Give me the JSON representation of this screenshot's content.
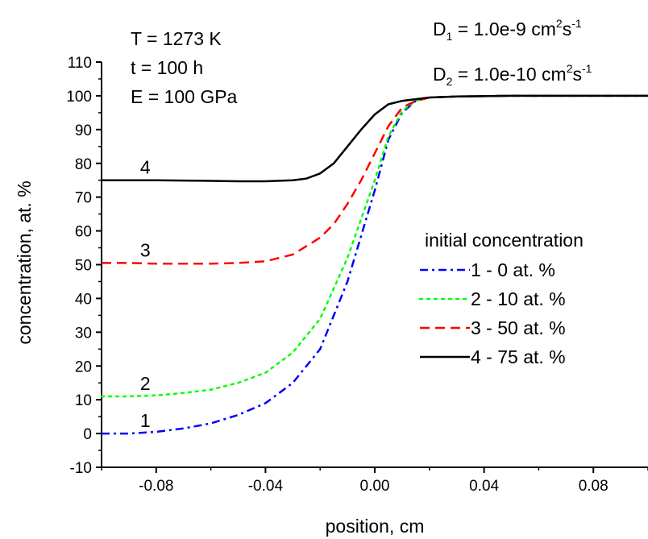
{
  "chart_data": {
    "type": "line",
    "title": "",
    "xlabel": "position, cm",
    "ylabel": "concentration, at. %",
    "xlim": [
      -0.1,
      0.1
    ],
    "ylim": [
      -10,
      110
    ],
    "xticks": [
      -0.08,
      -0.04,
      0.0,
      0.04,
      0.08
    ],
    "xtick_labels": [
      "-0.08",
      "-0.04",
      "0.00",
      "0.04",
      "0.08"
    ],
    "yticks": [
      -10,
      0,
      10,
      20,
      30,
      40,
      50,
      60,
      70,
      80,
      90,
      100,
      110
    ],
    "ytick_labels": [
      "-10",
      "0",
      "10",
      "20",
      "30",
      "40",
      "50",
      "60",
      "70",
      "80",
      "90",
      "100",
      "110"
    ],
    "grid": false,
    "legend": {
      "title": "initial concentration",
      "placement": "center-right",
      "entries": [
        "1 -   0 at. %",
        "2 - 10 at. %",
        "3 - 50 at. %",
        "4 - 75 at. %"
      ]
    },
    "annotations": {
      "params_left": [
        "T = 1273 K",
        "t  = 100 h",
        "E = 100 GPa"
      ],
      "d1": {
        "main": "D",
        "sub": "1",
        "value": " = 1.0e-9  cm",
        "sup1": "2",
        "mid": "s",
        "sup2": "-1"
      },
      "d2": {
        "main": "D",
        "sub": "2",
        "value": " = 1.0e-10 cm",
        "sup1": "2",
        "mid": "s",
        "sup2": "-1"
      }
    },
    "series": [
      {
        "label": "1",
        "color": "#0000ff",
        "dash": "dash-dot",
        "x": [
          -0.1,
          -0.09,
          -0.08,
          -0.07,
          -0.06,
          -0.05,
          -0.04,
          -0.03,
          -0.02,
          -0.01,
          0.0,
          0.005,
          0.01,
          0.015,
          0.02,
          0.03,
          0.05,
          0.07,
          0.1
        ],
        "y": [
          0,
          0,
          0.5,
          1.5,
          3,
          5.5,
          9,
          15,
          25,
          45,
          72,
          87,
          95,
          98.5,
          99.5,
          99.8,
          100,
          100,
          100
        ]
      },
      {
        "label": "2",
        "color": "#00ff00",
        "dash": "dot",
        "x": [
          -0.1,
          -0.09,
          -0.08,
          -0.07,
          -0.06,
          -0.05,
          -0.04,
          -0.03,
          -0.02,
          -0.01,
          0.0,
          0.005,
          0.01,
          0.015,
          0.02,
          0.03,
          0.05,
          0.07,
          0.1
        ],
        "y": [
          11,
          11,
          11.3,
          12,
          13,
          15,
          18,
          24,
          34,
          52,
          75,
          88,
          95.5,
          98.5,
          99.5,
          99.8,
          100,
          100,
          100
        ]
      },
      {
        "label": "3",
        "color": "#ff0000",
        "dash": "dash",
        "x": [
          -0.1,
          -0.09,
          -0.08,
          -0.07,
          -0.06,
          -0.05,
          -0.04,
          -0.03,
          -0.02,
          -0.015,
          -0.01,
          -0.005,
          0.0,
          0.005,
          0.01,
          0.015,
          0.02,
          0.03,
          0.05,
          0.07,
          0.1
        ],
        "y": [
          50.5,
          50.5,
          50.3,
          50.3,
          50.3,
          50.5,
          51,
          53,
          58,
          62,
          68,
          75,
          83,
          91,
          96.5,
          98.5,
          99.5,
          99.8,
          100,
          100,
          100
        ]
      },
      {
        "label": "4",
        "color": "#000000",
        "dash": "solid",
        "x": [
          -0.1,
          -0.09,
          -0.08,
          -0.07,
          -0.06,
          -0.05,
          -0.04,
          -0.03,
          -0.025,
          -0.02,
          -0.015,
          -0.01,
          -0.005,
          0.0,
          0.005,
          0.01,
          0.015,
          0.02,
          0.03,
          0.05,
          0.07,
          0.1
        ],
        "y": [
          75,
          75,
          75,
          74.9,
          74.8,
          74.7,
          74.7,
          75,
          75.5,
          77,
          80,
          85,
          90,
          94.5,
          97.5,
          98.5,
          99,
          99.5,
          99.8,
          100,
          100,
          100
        ]
      }
    ]
  }
}
